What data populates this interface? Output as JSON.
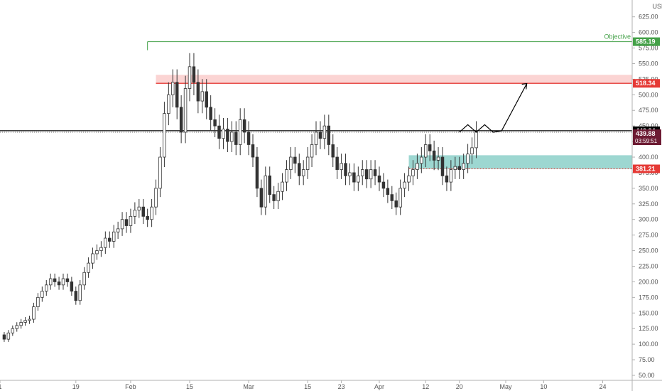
{
  "chart_data": {
    "type": "candlestick",
    "currency": "USD",
    "y_ticks": [
      50,
      75,
      100,
      125,
      150,
      175,
      200,
      225,
      250,
      275,
      300,
      325,
      350,
      375,
      400,
      425,
      450,
      475,
      500,
      525,
      550,
      575,
      600,
      625
    ],
    "y_tick_labels": [
      "50.00",
      "75.00",
      "100.00",
      "125.00",
      "150.00",
      "175.00",
      "200.00",
      "225.00",
      "250.00",
      "275.00",
      "300.00",
      "325.00",
      "350.00",
      "375.00",
      "400.00",
      "425.00",
      "450.00",
      "475.00",
      "500.00",
      "525.00",
      "550.00",
      "575.00",
      "600.00",
      "625.00"
    ],
    "ylim": [
      42,
      652
    ],
    "x_tick_labels": [
      {
        "label": "1",
        "day": 1
      },
      {
        "label": "19",
        "day": 19
      },
      {
        "label": "Feb",
        "day": 32
      },
      {
        "label": "15",
        "day": 46
      },
      {
        "label": "Mar",
        "day": 60
      },
      {
        "label": "15",
        "day": 74
      },
      {
        "label": "23",
        "day": 82
      },
      {
        "label": "Apr",
        "day": 91
      },
      {
        "label": "12",
        "day": 102
      },
      {
        "label": "20",
        "day": 110
      },
      {
        "label": "May",
        "day": 121
      },
      {
        "label": "10",
        "day": 130
      },
      {
        "label": "24",
        "day": 144
      }
    ],
    "xlim": [
      1,
      151
    ],
    "closes": [
      115,
      108,
      118,
      125,
      130,
      135,
      138,
      140,
      160,
      175,
      185,
      195,
      205,
      200,
      195,
      205,
      200,
      185,
      170,
      195,
      215,
      230,
      245,
      250,
      255,
      270,
      265,
      280,
      285,
      300,
      290,
      305,
      315,
      320,
      305,
      300,
      320,
      350,
      400,
      470,
      500,
      520,
      480,
      440,
      510,
      545,
      520,
      490,
      505,
      480,
      460,
      450,
      430,
      445,
      425,
      440,
      420,
      460,
      440,
      420,
      400,
      350,
      320,
      370,
      340,
      330,
      345,
      360,
      380,
      400,
      390,
      370,
      380,
      400,
      420,
      440,
      430,
      450,
      420,
      400,
      380,
      390,
      370,
      375,
      360,
      370,
      380,
      365,
      380,
      370,
      360,
      350,
      340,
      330,
      320,
      350,
      360,
      370,
      380,
      390,
      400,
      420,
      410,
      395,
      400,
      370,
      360,
      380,
      385,
      380,
      390,
      405,
      415,
      440
    ],
    "wick_pct": 0.04,
    "levels": [
      {
        "name": "objective",
        "value": 585.19,
        "label": "585.19",
        "color": "#43a047",
        "text": "Objective"
      },
      {
        "name": "resistance",
        "value": 518.34,
        "label": "518.34",
        "color": "#e53935",
        "zone_top": 532
      },
      {
        "name": "horizontal",
        "value": 442.34,
        "label": "442.34",
        "color": "#000000"
      },
      {
        "name": "support",
        "value": 381.21,
        "label": "381.21",
        "color": "#e53935",
        "zone_top": 403
      }
    ],
    "current": {
      "price": "439.88",
      "countdown": "03:59:51",
      "value": 439.88
    },
    "colors": {
      "candle": "#333333",
      "objective": "#43a047",
      "resistance": "#e53935",
      "resistance_zone": "rgba(239,83,80,0.25)",
      "support_zone": "rgba(38,166,154,0.45)",
      "current_label": "#6d1b33"
    },
    "projection_days": [
      110,
      112,
      114,
      116,
      118,
      120,
      123,
      126
    ],
    "projection_values": [
      440,
      452,
      440,
      452,
      440,
      442,
      480,
      518
    ]
  }
}
